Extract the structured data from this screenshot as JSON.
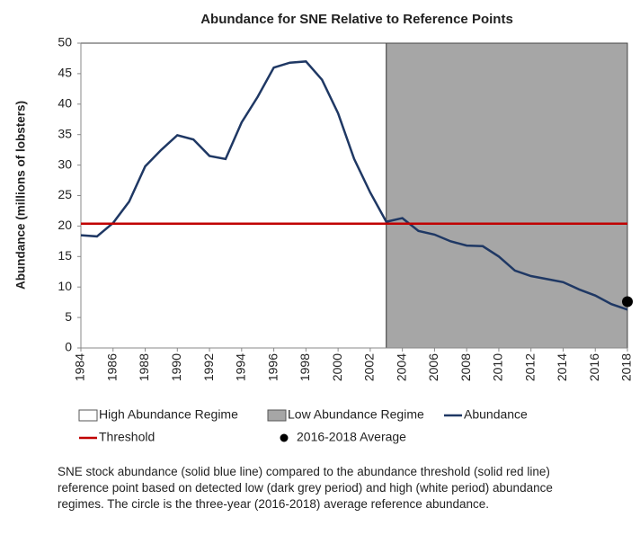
{
  "chart_data": {
    "type": "line",
    "title": "Abundance for SNE Relative to Reference Points",
    "y_label": "Abundance (millions of lobsters)",
    "x": [
      1984,
      1985,
      1986,
      1987,
      1988,
      1989,
      1990,
      1991,
      1992,
      1993,
      1994,
      1995,
      1996,
      1997,
      1998,
      1999,
      2000,
      2001,
      2002,
      2003,
      2004,
      2005,
      2006,
      2007,
      2008,
      2009,
      2010,
      2011,
      2012,
      2013,
      2014,
      2015,
      2016,
      2017,
      2018
    ],
    "series": [
      {
        "name": "Abundance",
        "color": "#1f3864",
        "values": [
          18.5,
          18.3,
          20.5,
          24,
          29.8,
          32.5,
          34.9,
          34.2,
          31.5,
          31,
          37,
          41.2,
          46,
          46.8,
          47,
          44,
          38.5,
          31,
          25.5,
          20.7,
          21.3,
          19.2,
          18.6,
          17.5,
          16.8,
          16.7,
          15,
          12.7,
          11.8,
          11.3,
          10.8,
          9.6,
          8.6,
          7.2,
          6.3
        ]
      }
    ],
    "threshold": {
      "name": "Threshold",
      "value": 20.4,
      "color": "#c00000"
    },
    "average": {
      "name": "2016-2018 Average",
      "x": 2018,
      "value": 7.6,
      "color": "#000000"
    },
    "regimes": [
      {
        "name": "High Abundance Regime",
        "start": 1984,
        "end": 2003,
        "color": "#ffffff"
      },
      {
        "name": "Low Abundance Regime",
        "start": 2003,
        "end": 2018,
        "color": "#a6a6a6"
      }
    ],
    "xlim": [
      1984,
      2018
    ],
    "xticks": [
      1984,
      1986,
      1988,
      1990,
      1992,
      1994,
      1996,
      1998,
      2000,
      2002,
      2004,
      2006,
      2008,
      2010,
      2012,
      2014,
      2016,
      2018
    ],
    "ylim": [
      0,
      50
    ],
    "yticks": [
      0,
      5,
      10,
      15,
      20,
      25,
      30,
      35,
      40,
      45,
      50
    ],
    "caption": "SNE stock abundance (solid blue line) compared to the abundance threshold (solid red line) reference point based on detected low (dark grey period) and high (white period) abundance regimes. The circle is the three-year (2016-2018) average reference abundance."
  }
}
